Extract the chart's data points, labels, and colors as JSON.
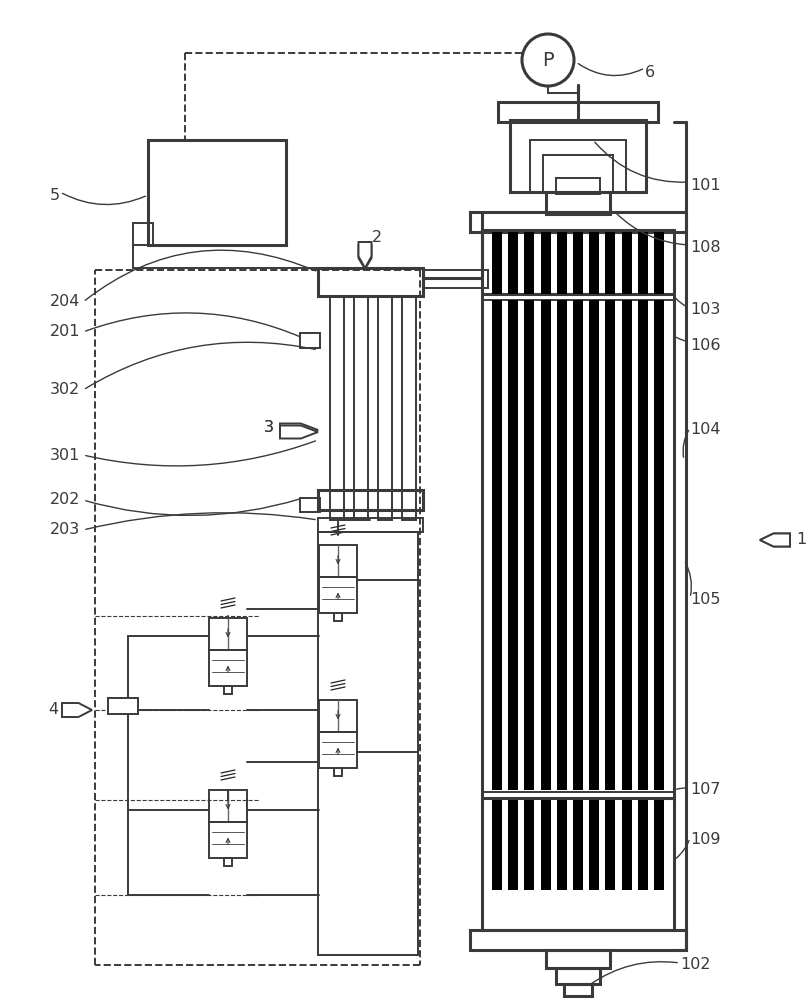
{
  "bg_color": "#FFFFFF",
  "lc": "#3a3a3a",
  "lw": 1.4,
  "lwt": 2.2,
  "lwn": 1.0,
  "fs": 11.5
}
